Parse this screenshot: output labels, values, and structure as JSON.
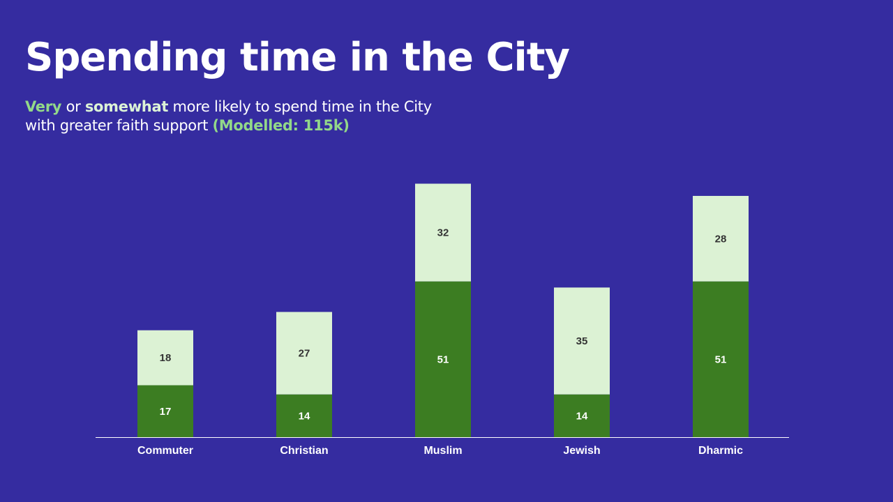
{
  "title": "Spending time in the City",
  "subtitle": {
    "very": "Very",
    "or": " or ",
    "somewhat": "somewhat",
    "line1_rest": " more likely to spend time in the City",
    "line2": "with greater faith support ",
    "modelled": "(Modelled: 115k)"
  },
  "colors": {
    "background": "#352ca0",
    "very": "#3c7d22",
    "somewhat": "#dcf2d4",
    "axis": "#ffffff",
    "very_label": "#ffffff",
    "somewhat_label": "#333333"
  },
  "chart_data": {
    "type": "bar",
    "stacked": true,
    "title": "",
    "xlabel": "",
    "ylabel": "",
    "ylim": [
      0,
      85
    ],
    "categories": [
      "Commuter",
      "Christian",
      "Muslim",
      "Jewish",
      "Dharmic"
    ],
    "series": [
      {
        "name": "Very",
        "values": [
          17,
          14,
          51,
          14,
          51
        ]
      },
      {
        "name": "Somewhat",
        "values": [
          18,
          27,
          32,
          35,
          28
        ]
      }
    ],
    "grid": false,
    "legend": "none"
  }
}
